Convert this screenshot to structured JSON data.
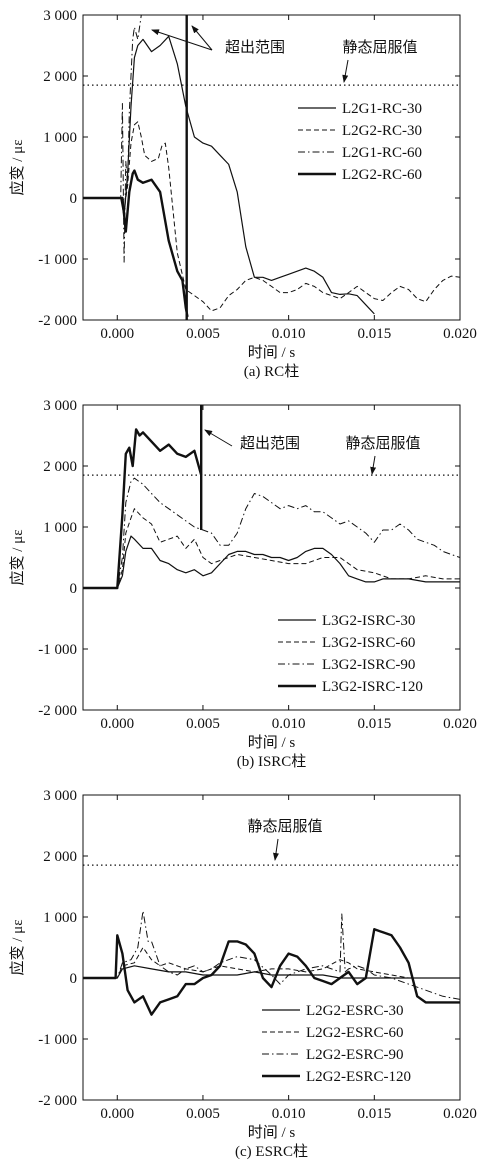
{
  "chart_data": [
    {
      "type": "line",
      "caption": "(a) RC柱",
      "xlabel": "时间 / s",
      "ylabel": "应变 / με",
      "xlim": [
        -0.002,
        0.02
      ],
      "ylim": [
        -2000,
        3000
      ],
      "xticks": [
        0.0,
        0.005,
        0.01,
        0.015,
        0.02
      ],
      "xtick_labels": [
        "0.000",
        "0.005",
        "0.010",
        "0.015",
        "0.020"
      ],
      "yticks": [
        -2000,
        -1000,
        0,
        1000,
        2000,
        3000
      ],
      "ytick_labels": [
        "-2 000",
        "-1 000",
        "0",
        "1 000",
        "2 000",
        "3 000"
      ],
      "grid": false,
      "legend_position": "right",
      "reference_line": {
        "label": "静态屈服值",
        "value": 1850
      },
      "annotations": [
        {
          "text": "超出范围"
        },
        {
          "text": "静态屈服值"
        }
      ],
      "series": [
        {
          "name": "L2G1-RC-30",
          "style": "solid",
          "width": 1.2,
          "x": [
            -0.002,
            0.0002,
            0.0004,
            0.0006,
            0.0008,
            0.001,
            0.0012,
            0.0015,
            0.002,
            0.0025,
            0.003,
            0.0035,
            0.004,
            0.0045,
            0.005,
            0.0055,
            0.006,
            0.0065,
            0.007,
            0.0075,
            0.008,
            0.0085,
            0.009,
            0.0095,
            0.01,
            0.0105,
            0.011,
            0.0115,
            0.012,
            0.0125,
            0.013,
            0.0135,
            0.014,
            0.0145,
            0.015
          ],
          "y": [
            0,
            0,
            -300,
            400,
            1500,
            2300,
            2500,
            2600,
            2400,
            2500,
            2650,
            2200,
            1500,
            1000,
            900,
            850,
            700,
            550,
            100,
            -800,
            -1300,
            -1300,
            -1350,
            -1300,
            -1250,
            -1200,
            -1150,
            -1200,
            -1300,
            -1550,
            -1580,
            -1570,
            -1600,
            -1750,
            -1900
          ]
        },
        {
          "name": "L2G2-RC-30",
          "style": "dashed",
          "width": 1.0,
          "x": [
            -0.002,
            0.0002,
            0.0004,
            0.0006,
            0.0008,
            0.001,
            0.0012,
            0.0014,
            0.0016,
            0.002,
            0.0024,
            0.0026,
            0.0028,
            0.003,
            0.0035,
            0.004,
            0.0045,
            0.005,
            0.0055,
            0.006,
            0.0065,
            0.007,
            0.0075,
            0.008,
            0.0085,
            0.009,
            0.0095,
            0.01,
            0.0105,
            0.011,
            0.0115,
            0.012,
            0.0125,
            0.013,
            0.0135,
            0.014,
            0.0145,
            0.015,
            0.0155,
            0.016,
            0.0165,
            0.017,
            0.0175,
            0.018,
            0.0185,
            0.019,
            0.0195,
            0.02
          ],
          "y": [
            0,
            0,
            -200,
            200,
            900,
            1200,
            1250,
            1000,
            700,
            600,
            650,
            850,
            900,
            500,
            -900,
            -1500,
            -1600,
            -1700,
            -1850,
            -1800,
            -1600,
            -1500,
            -1350,
            -1300,
            -1350,
            -1450,
            -1550,
            -1550,
            -1500,
            -1400,
            -1450,
            -1550,
            -1600,
            -1650,
            -1550,
            -1450,
            -1550,
            -1650,
            -1680,
            -1550,
            -1450,
            -1500,
            -1650,
            -1700,
            -1500,
            -1350,
            -1280,
            -1300
          ]
        },
        {
          "name": "L2G1-RC-60",
          "style": "dashdot",
          "width": 1.0,
          "x": [
            -0.002,
            0.0002,
            0.0003,
            0.0004,
            0.0005,
            0.0006,
            0.0007,
            0.0009,
            0.001,
            0.0012,
            0.0014
          ],
          "y": [
            0,
            0,
            1550,
            -1050,
            600,
            200,
            1400,
            2600,
            2800,
            2600,
            3000
          ]
        },
        {
          "name": "L2G2-RC-60",
          "style": "solid",
          "width": 2.4,
          "x": [
            -0.002,
            0.0003,
            0.0005,
            0.0007,
            0.0009,
            0.001,
            0.0012,
            0.0015,
            0.002,
            0.0025,
            0.003,
            0.0035,
            0.0038,
            0.004,
            0.0041
          ],
          "y": [
            0,
            0,
            -550,
            100,
            400,
            450,
            300,
            250,
            300,
            100,
            -700,
            -1200,
            -1350,
            -1800,
            -1950
          ]
        },
        {
          "name": "",
          "style": "solid",
          "width": 2.4,
          "x": [
            0.00405,
            0.00405
          ],
          "y": [
            -2000,
            3000
          ]
        }
      ]
    },
    {
      "type": "line",
      "caption": "(b) ISRC柱",
      "xlabel": "时间 / s",
      "ylabel": "应变 / με",
      "xlim": [
        -0.002,
        0.02
      ],
      "ylim": [
        -2000,
        3000
      ],
      "xticks": [
        0.0,
        0.005,
        0.01,
        0.015,
        0.02
      ],
      "xtick_labels": [
        "0.000",
        "0.005",
        "0.010",
        "0.015",
        "0.020"
      ],
      "yticks": [
        -2000,
        -1000,
        0,
        1000,
        2000,
        3000
      ],
      "ytick_labels": [
        "-2 000",
        "-1 000",
        "0",
        "1 000",
        "2 000",
        "3 000"
      ],
      "grid": false,
      "legend_position": "bottom-right",
      "reference_line": {
        "label": "静态屈服值",
        "value": 1850
      },
      "annotations": [
        {
          "text": "超出范围"
        },
        {
          "text": "静态屈服值"
        }
      ],
      "series": [
        {
          "name": "L3G2-ISRC-30",
          "style": "solid",
          "width": 1.2,
          "x": [
            -0.002,
            0.0,
            0.0003,
            0.0005,
            0.0008,
            0.001,
            0.0015,
            0.002,
            0.0025,
            0.003,
            0.0035,
            0.004,
            0.0045,
            0.005,
            0.0055,
            0.006,
            0.0065,
            0.007,
            0.0075,
            0.008,
            0.0085,
            0.009,
            0.0095,
            0.01,
            0.0105,
            0.011,
            0.0115,
            0.012,
            0.0125,
            0.013,
            0.0135,
            0.014,
            0.0145,
            0.015,
            0.0155,
            0.016,
            0.017,
            0.018,
            0.019,
            0.02
          ],
          "y": [
            0,
            0,
            200,
            600,
            850,
            800,
            650,
            650,
            450,
            400,
            300,
            250,
            300,
            200,
            250,
            400,
            550,
            600,
            600,
            550,
            550,
            500,
            500,
            450,
            500,
            600,
            650,
            650,
            550,
            400,
            200,
            150,
            100,
            100,
            150,
            150,
            150,
            100,
            100,
            100
          ]
        },
        {
          "name": "L3G2-ISRC-60",
          "style": "dashed",
          "width": 1.0,
          "x": [
            -0.002,
            0.0,
            0.0003,
            0.0005,
            0.0008,
            0.001,
            0.0015,
            0.002,
            0.0025,
            0.003,
            0.0035,
            0.004,
            0.0045,
            0.005,
            0.0055,
            0.006,
            0.007,
            0.008,
            0.009,
            0.01,
            0.011,
            0.012,
            0.013,
            0.014,
            0.015,
            0.016,
            0.017,
            0.018,
            0.019,
            0.02
          ],
          "y": [
            0,
            0,
            300,
            900,
            1150,
            1300,
            1150,
            1050,
            750,
            800,
            850,
            650,
            800,
            500,
            400,
            450,
            550,
            500,
            450,
            400,
            400,
            500,
            500,
            300,
            250,
            150,
            150,
            200,
            150,
            150
          ]
        },
        {
          "name": "L3G2-ISRC-90",
          "style": "dashdot",
          "width": 1.0,
          "x": [
            -0.002,
            0.0,
            0.0003,
            0.0005,
            0.0008,
            0.001,
            0.0015,
            0.002,
            0.0025,
            0.003,
            0.0035,
            0.004,
            0.0045,
            0.005,
            0.0055,
            0.006,
            0.0065,
            0.007,
            0.0075,
            0.008,
            0.0085,
            0.009,
            0.0095,
            0.01,
            0.0105,
            0.011,
            0.0115,
            0.012,
            0.0125,
            0.013,
            0.0135,
            0.014,
            0.0145,
            0.015,
            0.0155,
            0.016,
            0.0165,
            0.017,
            0.0175,
            0.018,
            0.0185,
            0.019,
            0.0195,
            0.02
          ],
          "y": [
            0,
            0,
            500,
            1400,
            1750,
            1800,
            1700,
            1550,
            1400,
            1300,
            1200,
            1100,
            1000,
            950,
            900,
            700,
            700,
            900,
            1300,
            1550,
            1500,
            1400,
            1300,
            1350,
            1300,
            1350,
            1250,
            1250,
            1150,
            1050,
            1100,
            1000,
            900,
            750,
            950,
            950,
            1050,
            950,
            800,
            750,
            700,
            600,
            550,
            500
          ]
        },
        {
          "name": "L3G2-ISRC-120",
          "style": "solid",
          "width": 2.4,
          "x": [
            -0.002,
            0.0,
            0.0003,
            0.0005,
            0.0007,
            0.0009,
            0.0011,
            0.0013,
            0.0015,
            0.002,
            0.0025,
            0.003,
            0.0035,
            0.004,
            0.0045,
            0.0049
          ],
          "y": [
            0,
            0,
            1200,
            2200,
            2300,
            2000,
            2600,
            2500,
            2550,
            2400,
            2250,
            2350,
            2200,
            2150,
            2250,
            1850
          ]
        },
        {
          "name": "",
          "style": "solid",
          "width": 2.4,
          "x": [
            0.0049,
            0.0049
          ],
          "y": [
            950,
            3000
          ]
        }
      ]
    },
    {
      "type": "line",
      "caption": "(c) ESRC柱",
      "xlabel": "时间 / s",
      "ylabel": "应变 / με",
      "xlim": [
        -0.002,
        0.02
      ],
      "ylim": [
        -2000,
        3000
      ],
      "xticks": [
        0.0,
        0.005,
        0.01,
        0.015,
        0.02
      ],
      "xtick_labels": [
        "0.000",
        "0.005",
        "0.010",
        "0.015",
        "0.020"
      ],
      "yticks": [
        -2000,
        -1000,
        0,
        1000,
        2000,
        3000
      ],
      "ytick_labels": [
        "-2 000",
        "-1 000",
        "0",
        "1 000",
        "2 000",
        "3 000"
      ],
      "grid": false,
      "legend_position": "bottom-right",
      "reference_line": {
        "label": "静态屈服值",
        "value": 1850
      },
      "annotations": [
        {
          "text": "静态屈服值"
        }
      ],
      "series": [
        {
          "name": "L2G2-ESRC-30",
          "style": "solid",
          "width": 1.2,
          "x": [
            -0.002,
            0.0,
            0.0003,
            0.001,
            0.002,
            0.003,
            0.004,
            0.005,
            0.006,
            0.007,
            0.008,
            0.009,
            0.01,
            0.011,
            0.012,
            0.013,
            0.014,
            0.015,
            0.016,
            0.017,
            0.018,
            0.019,
            0.02
          ],
          "y": [
            0,
            0,
            150,
            200,
            150,
            100,
            100,
            50,
            50,
            50,
            100,
            50,
            50,
            50,
            50,
            0,
            0,
            0,
            0,
            0,
            0,
            0,
            0
          ]
        },
        {
          "name": "L2G2-ESRC-60",
          "style": "dashed",
          "width": 1.0,
          "x": [
            -0.002,
            0.0,
            0.0003,
            0.001,
            0.0015,
            0.002,
            0.0025,
            0.003,
            0.004,
            0.005,
            0.006,
            0.007,
            0.008,
            0.009,
            0.01,
            0.011,
            0.012,
            0.013,
            0.0135,
            0.014,
            0.015,
            0.016,
            0.017,
            0.018,
            0.019,
            0.02
          ],
          "y": [
            0,
            0,
            200,
            250,
            500,
            300,
            200,
            250,
            150,
            100,
            200,
            150,
            100,
            150,
            150,
            100,
            150,
            300,
            250,
            150,
            100,
            50,
            0,
            0,
            0,
            0
          ]
        },
        {
          "name": "L2G2-ESRC-90",
          "style": "dashdot",
          "width": 1.0,
          "x": [
            -0.002,
            0.0,
            0.0003,
            0.0008,
            0.0012,
            0.0015,
            0.0018,
            0.002,
            0.0025,
            0.003,
            0.0035,
            0.004,
            0.0045,
            0.005,
            0.0055,
            0.006,
            0.007,
            0.008,
            0.009,
            0.0095,
            0.01,
            0.011,
            0.012,
            0.0125,
            0.013,
            0.0131,
            0.0133,
            0.0135,
            0.014,
            0.0145,
            0.015,
            0.016,
            0.017,
            0.018,
            0.019,
            0.02
          ],
          "y": [
            0,
            0,
            250,
            300,
            500,
            1100,
            600,
            600,
            200,
            100,
            50,
            150,
            200,
            100,
            150,
            250,
            350,
            300,
            50,
            -100,
            50,
            150,
            200,
            150,
            100,
            1050,
            100,
            150,
            200,
            150,
            50,
            0,
            -100,
            -200,
            -300,
            -350
          ]
        },
        {
          "name": "L2G2-ESRC-120",
          "style": "solid",
          "width": 2.4,
          "x": [
            -0.002,
            -0.0001,
            0.0,
            0.0003,
            0.0006,
            0.001,
            0.0015,
            0.002,
            0.0025,
            0.003,
            0.0035,
            0.004,
            0.0045,
            0.005,
            0.0055,
            0.006,
            0.0065,
            0.007,
            0.0075,
            0.008,
            0.0085,
            0.009,
            0.0095,
            0.01,
            0.0105,
            0.011,
            0.0115,
            0.012,
            0.0125,
            0.013,
            0.0135,
            0.014,
            0.0145,
            0.015,
            0.0155,
            0.016,
            0.0165,
            0.017,
            0.0175,
            0.018,
            0.019,
            0.02
          ],
          "y": [
            0,
            0,
            700,
            400,
            -200,
            -400,
            -300,
            -600,
            -400,
            -350,
            -300,
            -100,
            -100,
            0,
            50,
            200,
            600,
            600,
            550,
            400,
            0,
            -150,
            200,
            400,
            350,
            200,
            0,
            -50,
            -100,
            0,
            100,
            -100,
            0,
            800,
            750,
            700,
            500,
            250,
            -300,
            -400,
            -400,
            -400
          ]
        }
      ]
    }
  ],
  "legend_line_styles": {
    "solid": "",
    "dashed": "5 3",
    "dashdot": "7 3 1.5 3"
  }
}
